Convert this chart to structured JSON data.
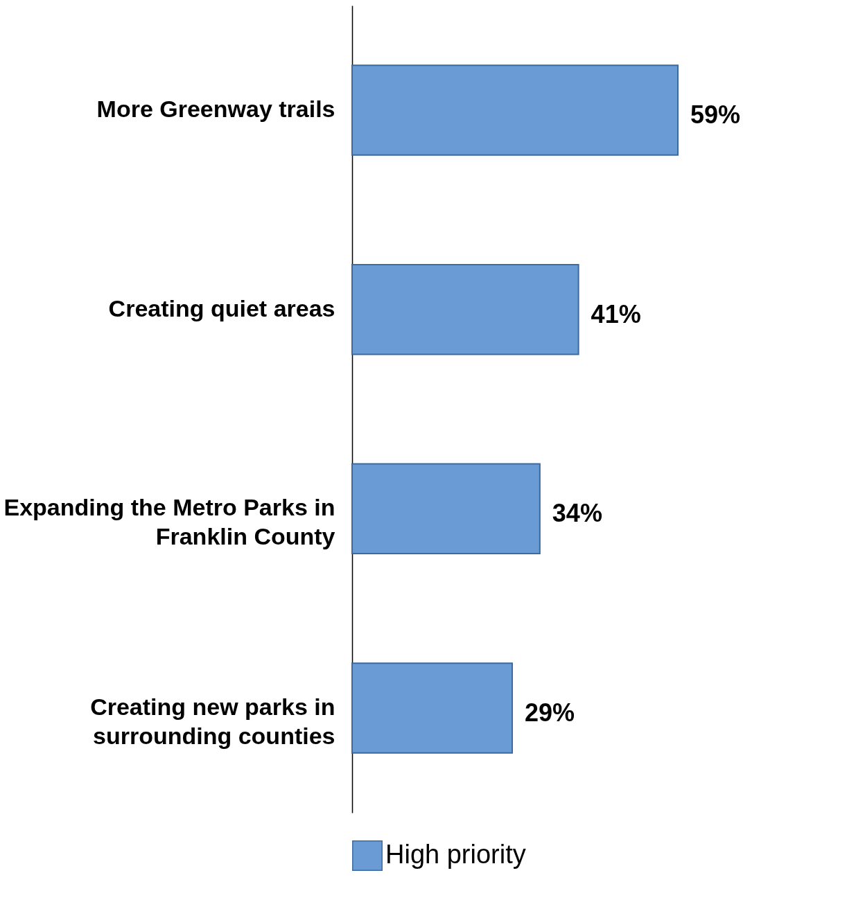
{
  "chart_data": {
    "type": "bar",
    "orientation": "horizontal",
    "categories": [
      "More Greenway trails",
      "Creating quiet areas",
      "Expanding the Metro Parks in Franklin County",
      "Creating new parks in surrounding counties"
    ],
    "series": [
      {
        "name": "High priority",
        "color": "#6a9bd4",
        "values": [
          59,
          41,
          34,
          29
        ],
        "value_labels": [
          "59%",
          "41%",
          "34%",
          "29%"
        ]
      }
    ],
    "legend": "bottom",
    "grid": false
  }
}
